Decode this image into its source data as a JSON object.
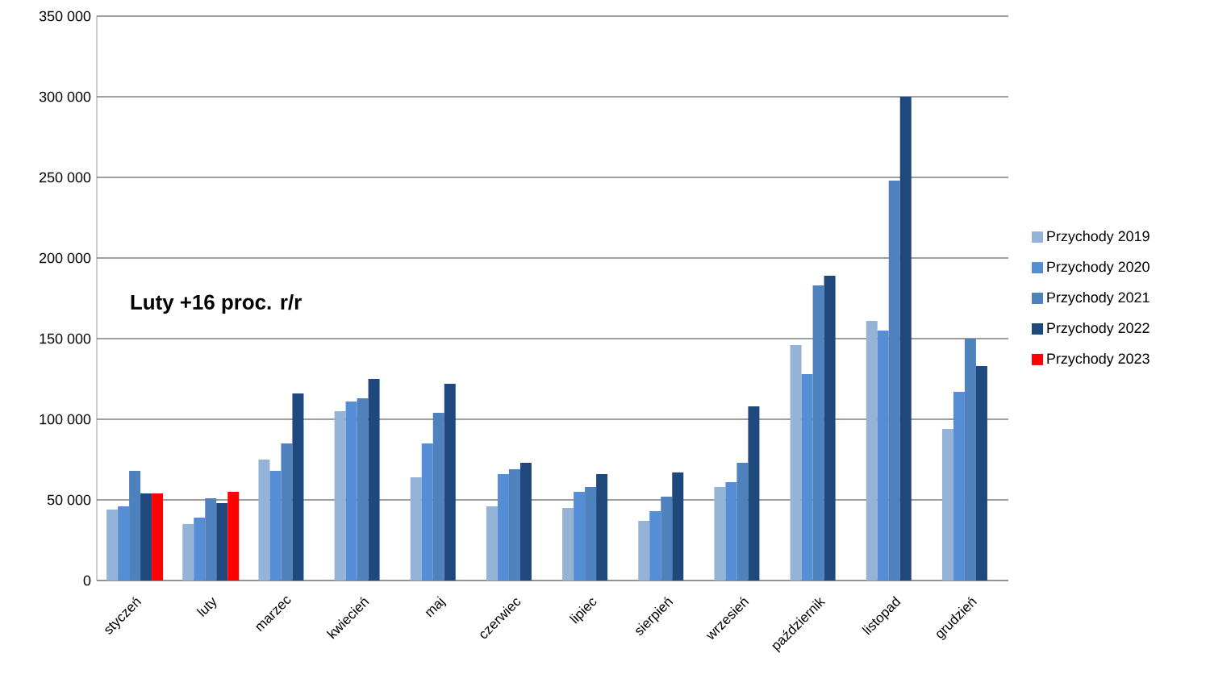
{
  "chart_data": {
    "type": "bar",
    "categories": [
      "styczeń",
      "luty",
      "marzec",
      "kwiecień",
      "maj",
      "czerwiec",
      "lipiec",
      "sierpień",
      "wrzesień",
      "październik",
      "listopad",
      "grudzień"
    ],
    "series": [
      {
        "name": "Przychody 2019",
        "color": "#95b3d7",
        "values": [
          44000,
          35000,
          75000,
          105000,
          64000,
          46000,
          45000,
          37000,
          58000,
          146000,
          161000,
          94000
        ]
      },
      {
        "name": "Przychody 2020",
        "color": "#558ed5",
        "values": [
          46000,
          39000,
          68000,
          111000,
          85000,
          66000,
          55000,
          43000,
          61000,
          128000,
          155000,
          117000
        ]
      },
      {
        "name": "Przychody 2021",
        "color": "#4f81bd",
        "values": [
          68000,
          51000,
          85000,
          113000,
          104000,
          69000,
          58000,
          52000,
          73000,
          183000,
          248000,
          150000
        ]
      },
      {
        "name": "Przychody 2022",
        "color": "#1f497d",
        "values": [
          54000,
          48000,
          116000,
          125000,
          122000,
          73000,
          66000,
          67000,
          108000,
          189000,
          300000,
          133000
        ]
      },
      {
        "name": "Przychody 2023",
        "color": "#ff0000",
        "values": [
          54000,
          55000,
          null,
          null,
          null,
          null,
          null,
          null,
          null,
          null,
          null,
          null
        ]
      }
    ],
    "ylim": [
      0,
      350000
    ],
    "yticks": [
      0,
      {
        "value": 50000,
        "label": "50 000"
      },
      {
        "value": 100000,
        "label": "100 000"
      },
      {
        "value": 150000,
        "label": "150 000"
      },
      {
        "value": 200000,
        "label": "200 000"
      },
      {
        "value": 250000,
        "label": "250 000"
      },
      {
        "value": 300000,
        "label": "300 000"
      },
      {
        "value": 350000,
        "label": "350 000"
      }
    ],
    "grid": "y",
    "legend": "right",
    "annotations": [
      "Luty +16 proc. r/r"
    ]
  }
}
